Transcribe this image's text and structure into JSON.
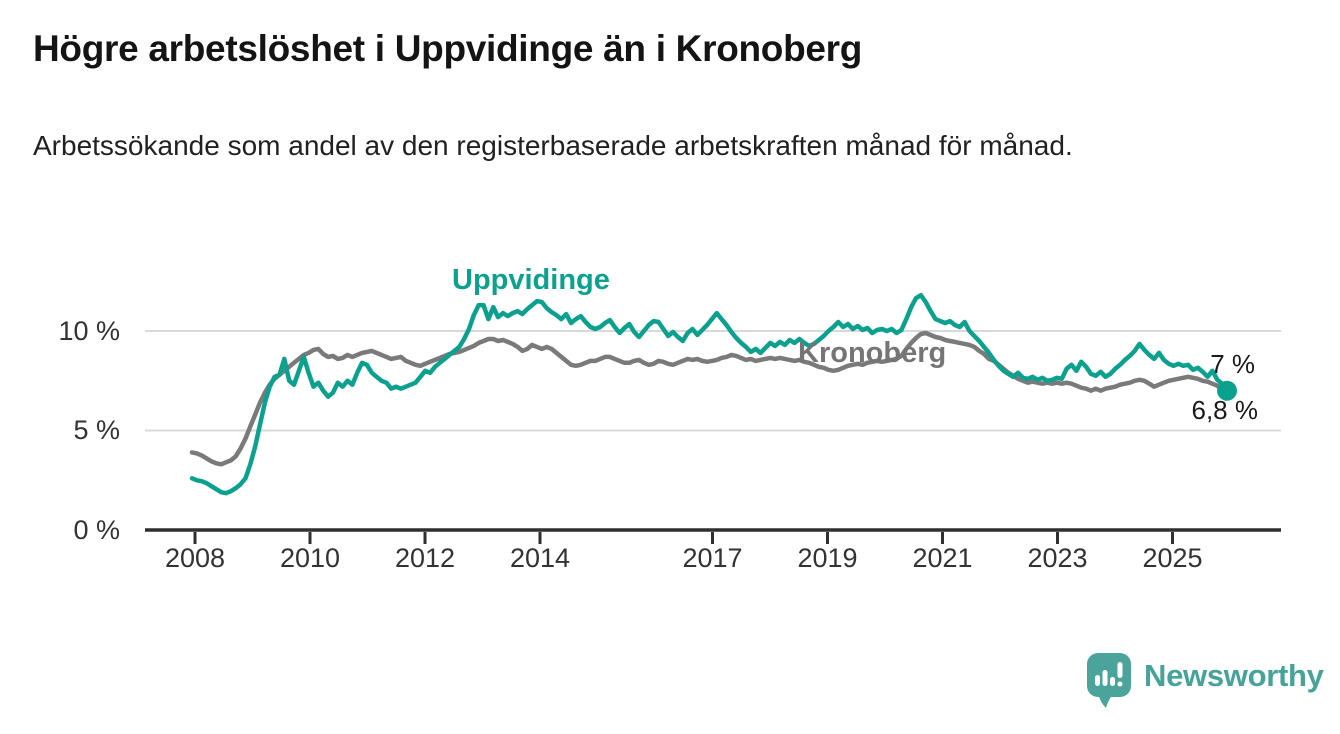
{
  "header": {
    "title": "Högre arbetslöshet i Uppvidinge än i Kronoberg",
    "subtitle": "Arbetssökande som andel av den registerbaserade arbetskraften månad för månad."
  },
  "colors": {
    "accent_teal": "#0ca18f",
    "series_gray": "#7a7a7a",
    "grid": "#d9d9d9",
    "axis": "#2f2f2f",
    "logo_teal": "#4aa49b",
    "text": "#1a1a1a"
  },
  "chart_data": {
    "type": "line",
    "unit": "%",
    "x_start": "2008-01",
    "x_end": "2025-10",
    "grid": "horizontal",
    "ylim": [
      0,
      12.3
    ],
    "yticks": [
      {
        "value": 0,
        "label": "0 %"
      },
      {
        "value": 5,
        "label": "5 %"
      },
      {
        "value": 10,
        "label": "10 %"
      }
    ],
    "xticks": [
      "2008",
      "2010",
      "2012",
      "2014",
      "2017",
      "2019",
      "2021",
      "2023",
      "2025"
    ],
    "series": [
      {
        "name": "Uppvidinge",
        "color": "#0ca18f",
        "end_label": "7 %",
        "end_value": 7.0,
        "values": [
          2.6,
          2.5,
          2.45,
          2.35,
          2.2,
          2.05,
          1.9,
          1.85,
          1.95,
          2.1,
          2.3,
          2.6,
          3.3,
          4.2,
          5.3,
          6.4,
          7.2,
          7.7,
          7.8,
          8.6,
          7.5,
          7.3,
          8.0,
          8.7,
          7.9,
          7.2,
          7.4,
          7.0,
          6.7,
          6.9,
          7.4,
          7.2,
          7.5,
          7.3,
          7.9,
          8.4,
          8.3,
          7.9,
          7.7,
          7.5,
          7.4,
          7.1,
          7.2,
          7.1,
          7.2,
          7.3,
          7.4,
          7.7,
          8.0,
          7.9,
          8.2,
          8.4,
          8.6,
          8.8,
          9.0,
          9.2,
          9.6,
          10.1,
          10.8,
          11.3,
          11.3,
          10.6,
          11.2,
          10.7,
          10.9,
          10.75,
          10.9,
          11.0,
          10.85,
          11.1,
          11.3,
          11.5,
          11.45,
          11.15,
          10.95,
          10.8,
          10.6,
          10.85,
          10.4,
          10.6,
          10.75,
          10.45,
          10.2,
          10.1,
          10.2,
          10.4,
          10.55,
          10.2,
          9.9,
          10.15,
          10.35,
          9.95,
          9.7,
          10.0,
          10.3,
          10.5,
          10.45,
          10.1,
          9.75,
          9.95,
          9.7,
          9.5,
          9.9,
          10.1,
          9.8,
          10.05,
          10.3,
          10.6,
          10.9,
          10.6,
          10.3,
          9.95,
          9.65,
          9.4,
          9.2,
          8.95,
          9.1,
          8.9,
          9.15,
          9.4,
          9.25,
          9.45,
          9.3,
          9.55,
          9.4,
          9.6,
          9.4,
          9.25,
          9.35,
          9.55,
          9.75,
          10.0,
          10.2,
          10.45,
          10.2,
          10.35,
          10.1,
          10.25,
          10.05,
          10.15,
          9.9,
          10.05,
          10.1,
          10.0,
          10.1,
          9.9,
          10.05,
          10.6,
          11.2,
          11.65,
          11.8,
          11.45,
          11.0,
          10.6,
          10.5,
          10.4,
          10.5,
          10.3,
          10.2,
          10.45,
          10.0,
          9.75,
          9.5,
          9.2,
          8.9,
          8.55,
          8.25,
          8.0,
          7.85,
          7.7,
          7.9,
          7.65,
          7.6,
          7.7,
          7.55,
          7.65,
          7.5,
          7.55,
          7.65,
          7.6,
          8.1,
          8.3,
          8.0,
          8.45,
          8.2,
          7.85,
          7.75,
          7.95,
          7.7,
          7.85,
          8.1,
          8.3,
          8.55,
          8.75,
          9.0,
          9.35,
          9.05,
          8.8,
          8.6,
          8.9,
          8.55,
          8.35,
          8.25,
          8.35,
          8.25,
          8.3,
          8.05,
          8.15,
          7.95,
          7.7,
          8.0,
          7.55,
          7.35,
          7.0
        ]
      },
      {
        "name": "Kronoberg",
        "color": "#7a7a7a",
        "end_label": "6,8 %",
        "end_value": 6.8,
        "values": [
          3.9,
          3.85,
          3.75,
          3.6,
          3.45,
          3.35,
          3.3,
          3.4,
          3.5,
          3.7,
          4.1,
          4.6,
          5.2,
          5.8,
          6.4,
          6.9,
          7.3,
          7.6,
          7.8,
          8.0,
          8.2,
          8.4,
          8.6,
          8.8,
          8.9,
          9.05,
          9.1,
          8.85,
          8.7,
          8.75,
          8.6,
          8.65,
          8.8,
          8.7,
          8.8,
          8.9,
          8.95,
          9.0,
          8.9,
          8.8,
          8.7,
          8.6,
          8.65,
          8.7,
          8.5,
          8.4,
          8.3,
          8.25,
          8.35,
          8.45,
          8.55,
          8.65,
          8.75,
          8.85,
          8.9,
          8.95,
          9.05,
          9.15,
          9.25,
          9.4,
          9.5,
          9.6,
          9.6,
          9.5,
          9.55,
          9.45,
          9.35,
          9.2,
          9.0,
          9.1,
          9.3,
          9.2,
          9.1,
          9.2,
          9.1,
          8.9,
          8.7,
          8.5,
          8.3,
          8.25,
          8.3,
          8.4,
          8.5,
          8.5,
          8.6,
          8.7,
          8.7,
          8.6,
          8.5,
          8.4,
          8.4,
          8.5,
          8.55,
          8.4,
          8.3,
          8.35,
          8.5,
          8.45,
          8.35,
          8.3,
          8.4,
          8.5,
          8.6,
          8.55,
          8.6,
          8.5,
          8.45,
          8.5,
          8.55,
          8.65,
          8.7,
          8.8,
          8.75,
          8.65,
          8.55,
          8.6,
          8.5,
          8.55,
          8.6,
          8.65,
          8.6,
          8.65,
          8.6,
          8.55,
          8.5,
          8.55,
          8.45,
          8.4,
          8.3,
          8.2,
          8.15,
          8.05,
          8.0,
          8.05,
          8.15,
          8.25,
          8.3,
          8.35,
          8.3,
          8.4,
          8.45,
          8.5,
          8.45,
          8.5,
          8.55,
          8.6,
          8.75,
          9.1,
          9.4,
          9.65,
          9.85,
          9.9,
          9.8,
          9.7,
          9.65,
          9.55,
          9.5,
          9.45,
          9.4,
          9.35,
          9.3,
          9.2,
          9.0,
          8.85,
          8.6,
          8.5,
          8.3,
          8.1,
          7.9,
          7.75,
          7.6,
          7.5,
          7.4,
          7.45,
          7.4,
          7.35,
          7.4,
          7.35,
          7.4,
          7.35,
          7.4,
          7.35,
          7.25,
          7.15,
          7.1,
          7.0,
          7.1,
          7.0,
          7.1,
          7.15,
          7.2,
          7.3,
          7.35,
          7.4,
          7.5,
          7.55,
          7.5,
          7.35,
          7.2,
          7.3,
          7.4,
          7.5,
          7.55,
          7.6,
          7.65,
          7.7,
          7.65,
          7.6,
          7.5,
          7.45,
          7.35,
          7.25,
          7.05,
          6.8
        ]
      }
    ]
  },
  "footer": {
    "brand": "Newsworthy"
  }
}
